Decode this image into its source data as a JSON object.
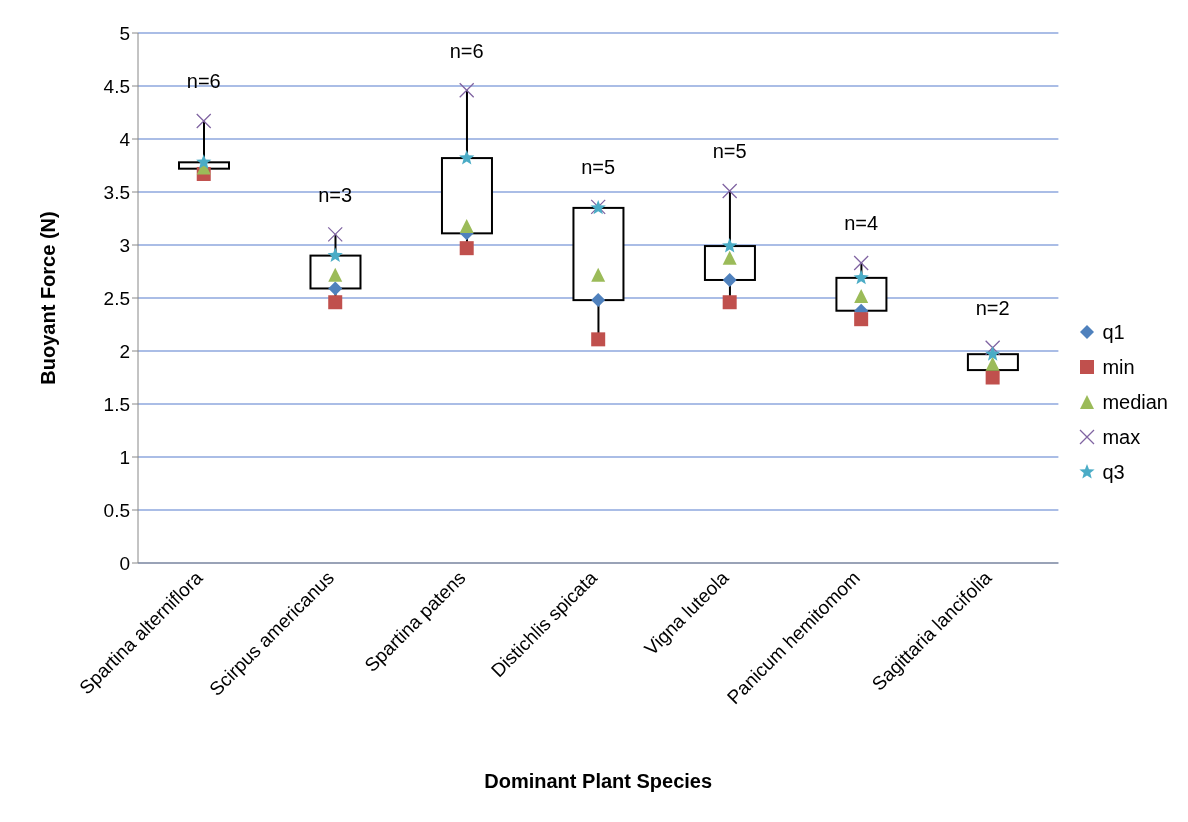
{
  "chart_data": {
    "type": "box",
    "xlabel": "Dominant Plant Species",
    "ylabel": "Buoyant Force (N)",
    "categories": [
      "Spartina alterniflora",
      "Scirpus americanus",
      "Spartina patens",
      "Distichlis spicata",
      "Vigna luteola",
      "Panicum hemitomom",
      "Sagittaria lancifolia"
    ],
    "boxes": [
      {
        "low": 3.67,
        "q1": 3.72,
        "q3": 3.78,
        "high": 4.17
      },
      {
        "low": 2.46,
        "q1": 2.59,
        "q3": 2.9,
        "high": 3.1
      },
      {
        "low": 2.97,
        "q1": 3.11,
        "q3": 3.82,
        "high": 4.46
      },
      {
        "low": 2.11,
        "q1": 2.48,
        "q3": 3.35,
        "high": 3.36
      },
      {
        "low": 2.46,
        "q1": 2.67,
        "q3": 2.99,
        "high": 3.51
      },
      {
        "low": 2.3,
        "q1": 2.38,
        "q3": 2.69,
        "high": 2.83
      },
      {
        "low": 1.75,
        "q1": 1.82,
        "q3": 1.97,
        "high": 2.03
      }
    ],
    "series": [
      {
        "name": "q1",
        "type": "scatter",
        "marker": "diamond",
        "color": "#4f81bd",
        "values": [
          null,
          2.59,
          3.11,
          2.48,
          2.67,
          2.38,
          null
        ]
      },
      {
        "name": "min",
        "type": "scatter",
        "marker": "square",
        "color": "#c0504d",
        "values": [
          3.67,
          2.46,
          2.97,
          2.11,
          2.46,
          2.3,
          1.75
        ]
      },
      {
        "name": "median",
        "type": "scatter",
        "marker": "triangle",
        "color": "#9bbb59",
        "values": [
          3.73,
          2.72,
          3.18,
          2.72,
          2.88,
          2.52,
          1.88
        ]
      },
      {
        "name": "max",
        "type": "scatter",
        "marker": "cross",
        "color": "#8064a2",
        "values": [
          4.17,
          3.1,
          4.46,
          3.36,
          3.51,
          2.83,
          2.03
        ]
      },
      {
        "name": "q3",
        "type": "scatter",
        "marker": "star",
        "color": "#4bacc6",
        "values": [
          3.78,
          2.9,
          3.82,
          3.35,
          2.99,
          2.69,
          1.97
        ]
      }
    ],
    "annotations": [
      "n=6",
      "n=3",
      "n=6",
      "n=5",
      "n=5",
      "n=4",
      "n=2"
    ],
    "ylim": [
      0,
      5
    ],
    "yticks": [
      0,
      0.5,
      1,
      1.5,
      2,
      2.5,
      3,
      3.5,
      4,
      4.5,
      5
    ],
    "grid": "y",
    "legend": "right"
  }
}
